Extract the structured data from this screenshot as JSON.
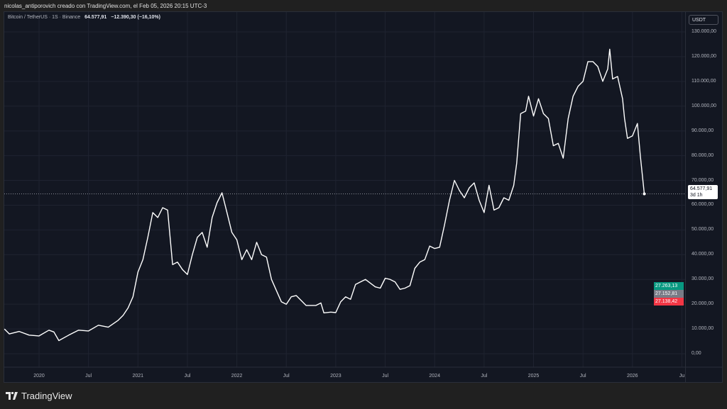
{
  "caption": "nicolas_antiporovich creado con TradingView.com, el Feb 05, 2026 20:15 UTC-3",
  "legend": {
    "symbol": "Bitcoin / TetherUS · 1S · Binance",
    "last": "64.577,91",
    "change": "−12.390,30 (−16,10%)"
  },
  "currency_button": "USDT",
  "last_price_tag": {
    "price": "64.577,91",
    "countdown": "3d 1h"
  },
  "tags": [
    {
      "value": "27.263,13",
      "color": "#089981"
    },
    {
      "value": "27.152,81",
      "color": "#787b86"
    },
    {
      "value": "27.138,42",
      "color": "#f23645"
    }
  ],
  "brand": "TradingView",
  "chart_data": {
    "type": "line",
    "line_color": "#ffffff",
    "background": "#131722",
    "grid": true,
    "ylim": [
      0,
      130000
    ],
    "y_ticks": [
      130000,
      120000,
      110000,
      100000,
      90000,
      80000,
      70000,
      60000,
      50000,
      40000,
      30000,
      20000,
      10000,
      0
    ],
    "y_tick_labels": [
      "130.000,00",
      "120.000,00",
      "110.000,00",
      "100.000,00",
      "90.000,00",
      "80.000,00",
      "70.000,00",
      "60.000,00",
      "50.000,00",
      "40.000,00",
      "30.000,00",
      "20.000,00",
      "10.000,00",
      "0,00"
    ],
    "x_ticks": [
      2020,
      2020.5,
      2021,
      2021.5,
      2022,
      2022.5,
      2023,
      2023.5,
      2024,
      2024.5,
      2025,
      2025.5,
      2026,
      2026.5
    ],
    "x_tick_labels": [
      "2020",
      "Jul",
      "2021",
      "Jul",
      "2022",
      "Jul",
      "2023",
      "Jul",
      "2024",
      "Jul",
      "2025",
      "Jul",
      "2026",
      "Ju"
    ],
    "xlim": [
      2019.64,
      2026.54
    ],
    "points": [
      [
        2019.65,
        10000
      ],
      [
        2019.7,
        8000
      ],
      [
        2019.8,
        9000
      ],
      [
        2019.9,
        7500
      ],
      [
        2020.0,
        7200
      ],
      [
        2020.1,
        9500
      ],
      [
        2020.15,
        8800
      ],
      [
        2020.2,
        5300
      ],
      [
        2020.3,
        7500
      ],
      [
        2020.4,
        9500
      ],
      [
        2020.5,
        9200
      ],
      [
        2020.6,
        11500
      ],
      [
        2020.7,
        10700
      ],
      [
        2020.8,
        13500
      ],
      [
        2020.85,
        15500
      ],
      [
        2020.9,
        18500
      ],
      [
        2020.95,
        23000
      ],
      [
        2021.0,
        33000
      ],
      [
        2021.05,
        38000
      ],
      [
        2021.1,
        47000
      ],
      [
        2021.15,
        57000
      ],
      [
        2021.2,
        55000
      ],
      [
        2021.25,
        59000
      ],
      [
        2021.3,
        58000
      ],
      [
        2021.35,
        36000
      ],
      [
        2021.4,
        37000
      ],
      [
        2021.45,
        34000
      ],
      [
        2021.5,
        32000
      ],
      [
        2021.55,
        40000
      ],
      [
        2021.6,
        47000
      ],
      [
        2021.65,
        49000
      ],
      [
        2021.7,
        43000
      ],
      [
        2021.75,
        55000
      ],
      [
        2021.8,
        61000
      ],
      [
        2021.85,
        65000
      ],
      [
        2021.9,
        57000
      ],
      [
        2021.95,
        49000
      ],
      [
        2022.0,
        46000
      ],
      [
        2022.05,
        38000
      ],
      [
        2022.1,
        42000
      ],
      [
        2022.15,
        38000
      ],
      [
        2022.2,
        45000
      ],
      [
        2022.25,
        40000
      ],
      [
        2022.3,
        39000
      ],
      [
        2022.35,
        30000
      ],
      [
        2022.45,
        21000
      ],
      [
        2022.5,
        20000
      ],
      [
        2022.55,
        23000
      ],
      [
        2022.6,
        23500
      ],
      [
        2022.7,
        19500
      ],
      [
        2022.8,
        19500
      ],
      [
        2022.85,
        20500
      ],
      [
        2022.88,
        16500
      ],
      [
        2022.95,
        16800
      ],
      [
        2023.0,
        16600
      ],
      [
        2023.05,
        21000
      ],
      [
        2023.1,
        23000
      ],
      [
        2023.15,
        22000
      ],
      [
        2023.2,
        28000
      ],
      [
        2023.3,
        30000
      ],
      [
        2023.4,
        27000
      ],
      [
        2023.45,
        26500
      ],
      [
        2023.5,
        30500
      ],
      [
        2023.55,
        30000
      ],
      [
        2023.6,
        29000
      ],
      [
        2023.65,
        26000
      ],
      [
        2023.7,
        26500
      ],
      [
        2023.75,
        27500
      ],
      [
        2023.8,
        34500
      ],
      [
        2023.85,
        37000
      ],
      [
        2023.9,
        38000
      ],
      [
        2023.95,
        43500
      ],
      [
        2024.0,
        42500
      ],
      [
        2024.05,
        43000
      ],
      [
        2024.1,
        52000
      ],
      [
        2024.15,
        62000
      ],
      [
        2024.2,
        70000
      ],
      [
        2024.25,
        66000
      ],
      [
        2024.3,
        63000
      ],
      [
        2024.35,
        67000
      ],
      [
        2024.4,
        69000
      ],
      [
        2024.45,
        62000
      ],
      [
        2024.5,
        57000
      ],
      [
        2024.55,
        68000
      ],
      [
        2024.6,
        58000
      ],
      [
        2024.65,
        59000
      ],
      [
        2024.7,
        63000
      ],
      [
        2024.75,
        62000
      ],
      [
        2024.8,
        68000
      ],
      [
        2024.83,
        77000
      ],
      [
        2024.87,
        97000
      ],
      [
        2024.92,
        98000
      ],
      [
        2024.95,
        104000
      ],
      [
        2025.0,
        96000
      ],
      [
        2025.05,
        103000
      ],
      [
        2025.1,
        97000
      ],
      [
        2025.15,
        95000
      ],
      [
        2025.2,
        84000
      ],
      [
        2025.25,
        85000
      ],
      [
        2025.3,
        79000
      ],
      [
        2025.35,
        95000
      ],
      [
        2025.4,
        104000
      ],
      [
        2025.45,
        108000
      ],
      [
        2025.5,
        110000
      ],
      [
        2025.55,
        118000
      ],
      [
        2025.6,
        118000
      ],
      [
        2025.65,
        116000
      ],
      [
        2025.7,
        110000
      ],
      [
        2025.75,
        115000
      ],
      [
        2025.77,
        123000
      ],
      [
        2025.8,
        111000
      ],
      [
        2025.85,
        112000
      ],
      [
        2025.9,
        103000
      ],
      [
        2025.92,
        95000
      ],
      [
        2025.95,
        87000
      ],
      [
        2026.0,
        88000
      ],
      [
        2026.05,
        93000
      ],
      [
        2026.08,
        80000
      ],
      [
        2026.12,
        64577.91
      ]
    ],
    "last_price_line": 64577.91
  }
}
